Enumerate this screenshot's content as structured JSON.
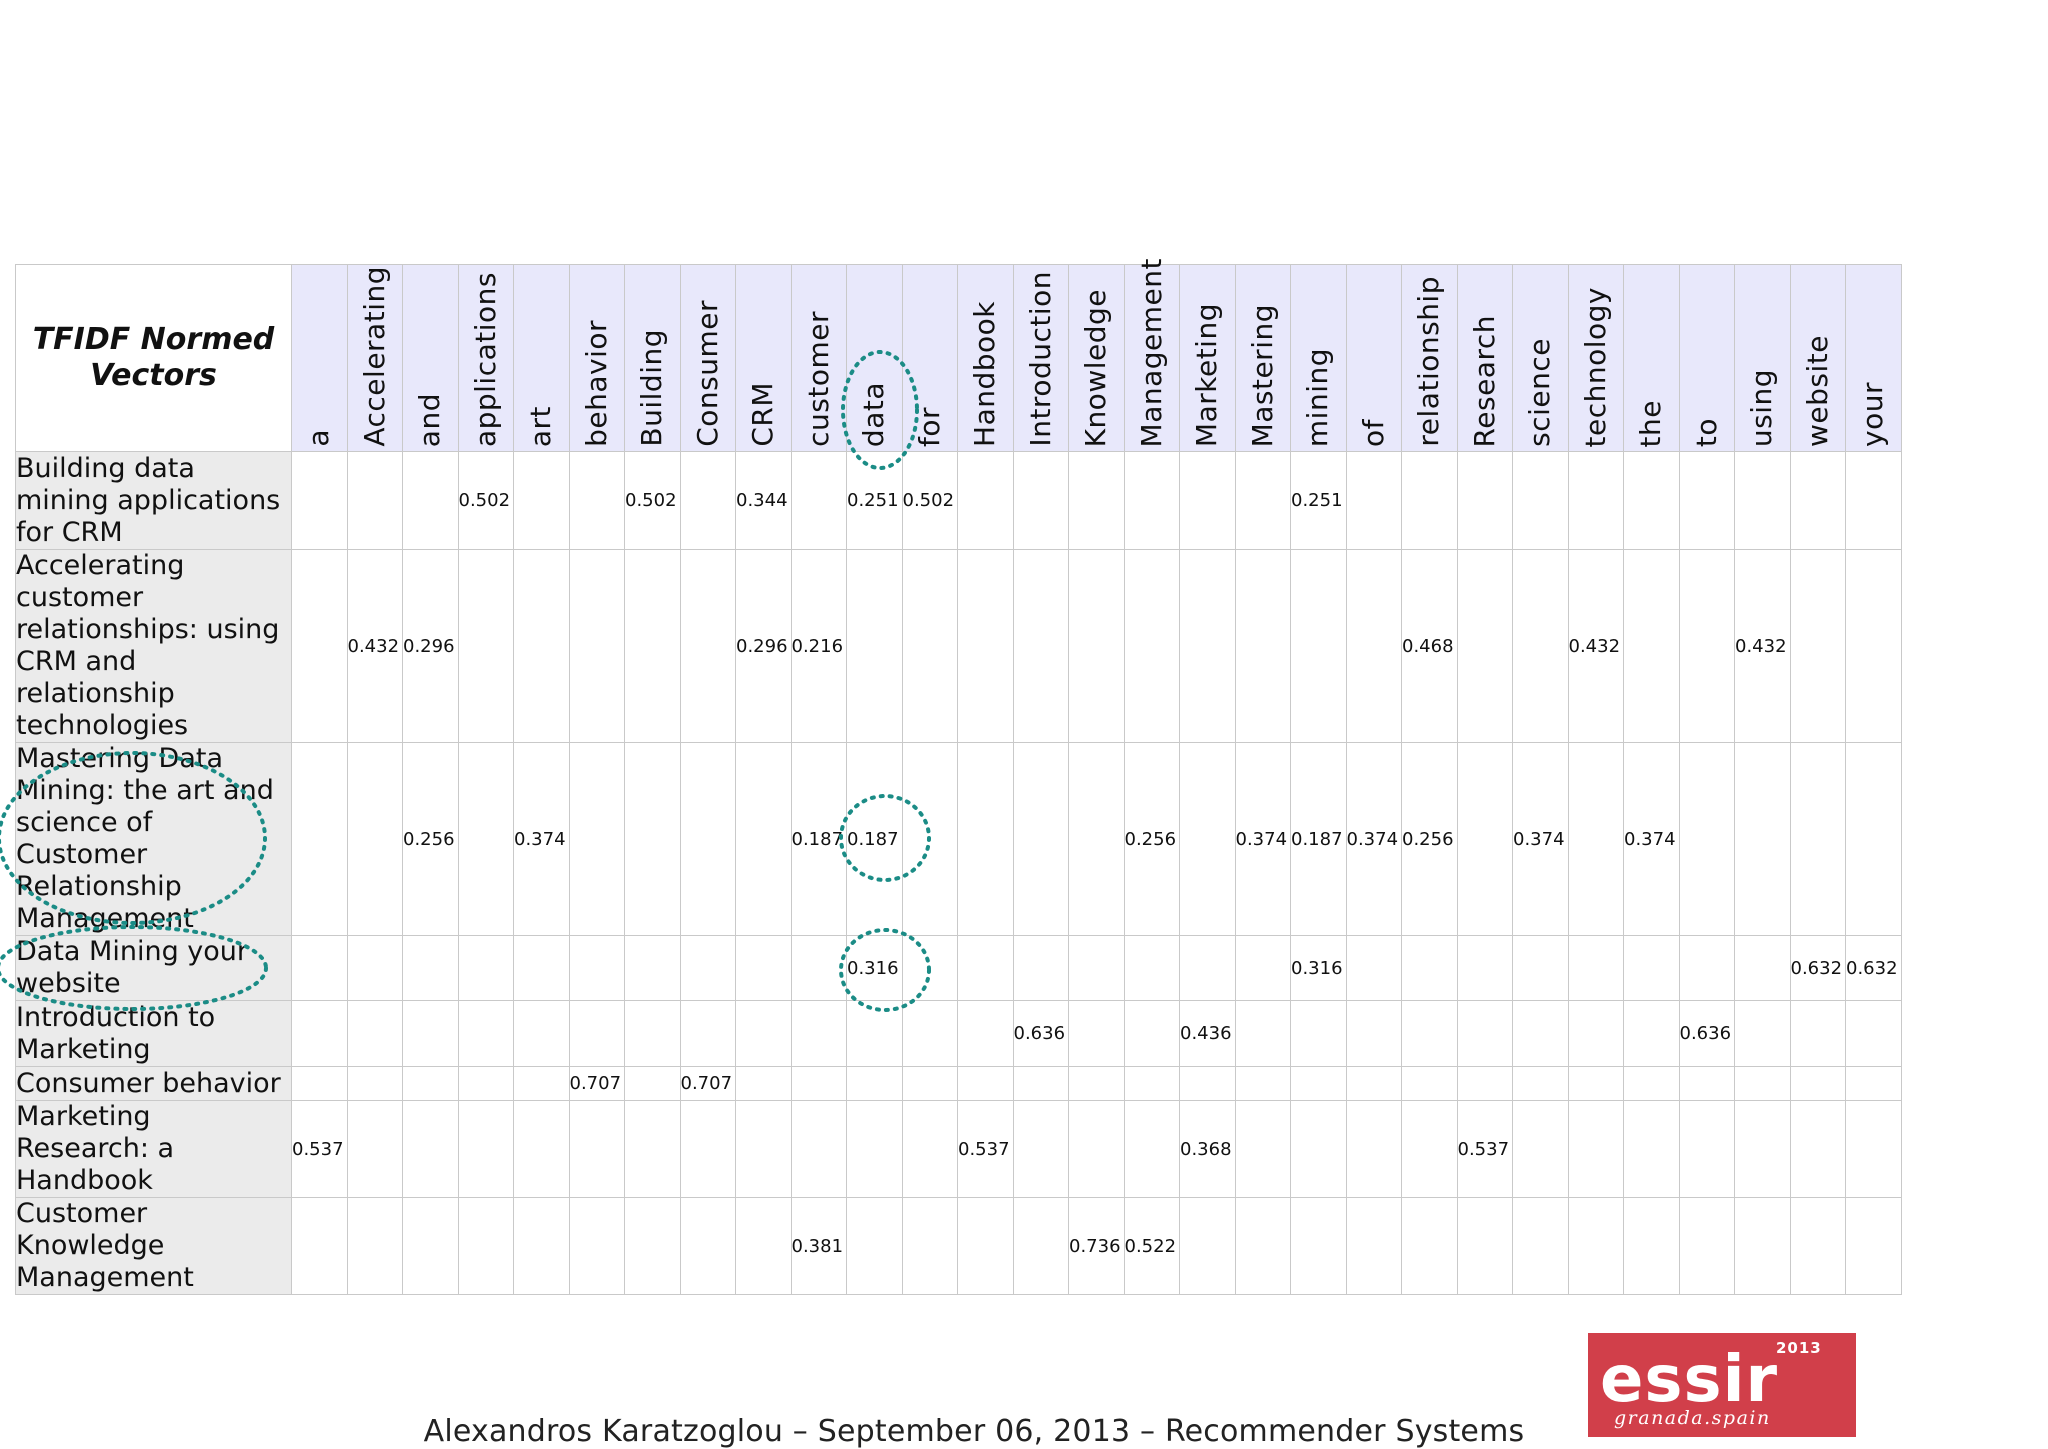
{
  "table": {
    "corner_label": "TFIDF Normed Vectors",
    "terms": [
      "a",
      "Accelerating",
      "and",
      "applications",
      "art",
      "behavior",
      "Building",
      "Consumer",
      "CRM",
      "customer",
      "data",
      "for",
      "Handbook",
      "Introduction",
      "Knowledge",
      "Management",
      "Marketing",
      "Mastering",
      "mining",
      "of",
      "relationship",
      "Research",
      "science",
      "technology",
      "the",
      "to",
      "using",
      "website",
      "your"
    ],
    "rows": [
      {
        "label": "Building data mining applications for CRM",
        "values": [
          "",
          "",
          "",
          "0.502",
          "",
          "",
          "0.502",
          "",
          "0.344",
          "",
          "0.251",
          "0.502",
          "",
          "",
          "",
          "",
          "",
          "",
          "0.251",
          "",
          "",
          "",
          "",
          "",
          "",
          "",
          "",
          "",
          ""
        ]
      },
      {
        "label": "Accelerating customer relationships: using CRM and relationship technologies",
        "values": [
          "",
          "0.432",
          "0.296",
          "",
          "",
          "",
          "",
          "",
          "0.296",
          "0.216",
          "",
          "",
          "",
          "",
          "",
          "",
          "",
          "",
          "",
          "",
          "0.468",
          "",
          "",
          "0.432",
          "",
          "",
          "0.432",
          "",
          ""
        ]
      },
      {
        "label": "Mastering Data Mining: the art and science of Customer Relationship Management",
        "values": [
          "",
          "",
          "0.256",
          "",
          "0.374",
          "",
          "",
          "",
          "",
          "0.187",
          "0.187",
          "",
          "",
          "",
          "",
          "0.256",
          "",
          "0.374",
          "0.187",
          "0.374",
          "0.256",
          "",
          "0.374",
          "",
          "0.374",
          "",
          "",
          "",
          ""
        ]
      },
      {
        "label": "Data Mining your website",
        "values": [
          "",
          "",
          "",
          "",
          "",
          "",
          "",
          "",
          "",
          "",
          "0.316",
          "",
          "",
          "",
          "",
          "",
          "",
          "",
          "0.316",
          "",
          "",
          "",
          "",
          "",
          "",
          "",
          "",
          "0.632",
          "0.632"
        ]
      },
      {
        "label": "Introduction to Marketing",
        "values": [
          "",
          "",
          "",
          "",
          "",
          "",
          "",
          "",
          "",
          "",
          "",
          "",
          "",
          "0.636",
          "",
          "",
          "0.436",
          "",
          "",
          "",
          "",
          "",
          "",
          "",
          "",
          "0.636",
          "",
          "",
          ""
        ]
      },
      {
        "label": "Consumer behavior",
        "values": [
          "",
          "",
          "",
          "",
          "",
          "0.707",
          "",
          "0.707",
          "",
          "",
          "",
          "",
          "",
          "",
          "",
          "",
          "",
          "",
          "",
          "",
          "",
          "",
          "",
          "",
          "",
          "",
          "",
          "",
          ""
        ]
      },
      {
        "label": "Marketing Research: a Handbook",
        "values": [
          "0.537",
          "",
          "",
          "",
          "",
          "",
          "",
          "",
          "",
          "",
          "",
          "",
          "0.537",
          "",
          "",
          "",
          "0.368",
          "",
          "",
          "",
          "",
          "0.537",
          "",
          "",
          "",
          "",
          "",
          "",
          ""
        ]
      },
      {
        "label": "Customer Knowledge Management",
        "values": [
          "",
          "",
          "",
          "",
          "",
          "",
          "",
          "",
          "",
          "0.381",
          "",
          "",
          "",
          "",
          "0.736",
          "0.522",
          "",
          "",
          "",
          "",
          "",
          "",
          "",
          "",
          "",
          "",
          "",
          "",
          ""
        ]
      }
    ]
  },
  "footer": {
    "text": "Alexandros Karatzoglou – September 06, 2013 – Recommender Systems"
  },
  "logo": {
    "name": "essir",
    "year": "2013",
    "place": "granada.spain"
  },
  "colors": {
    "header_fill": "#e8e8fb",
    "label_fill": "#ebebeb",
    "highlight": "#1b8c86",
    "logo_bg": "#d13f4a"
  }
}
